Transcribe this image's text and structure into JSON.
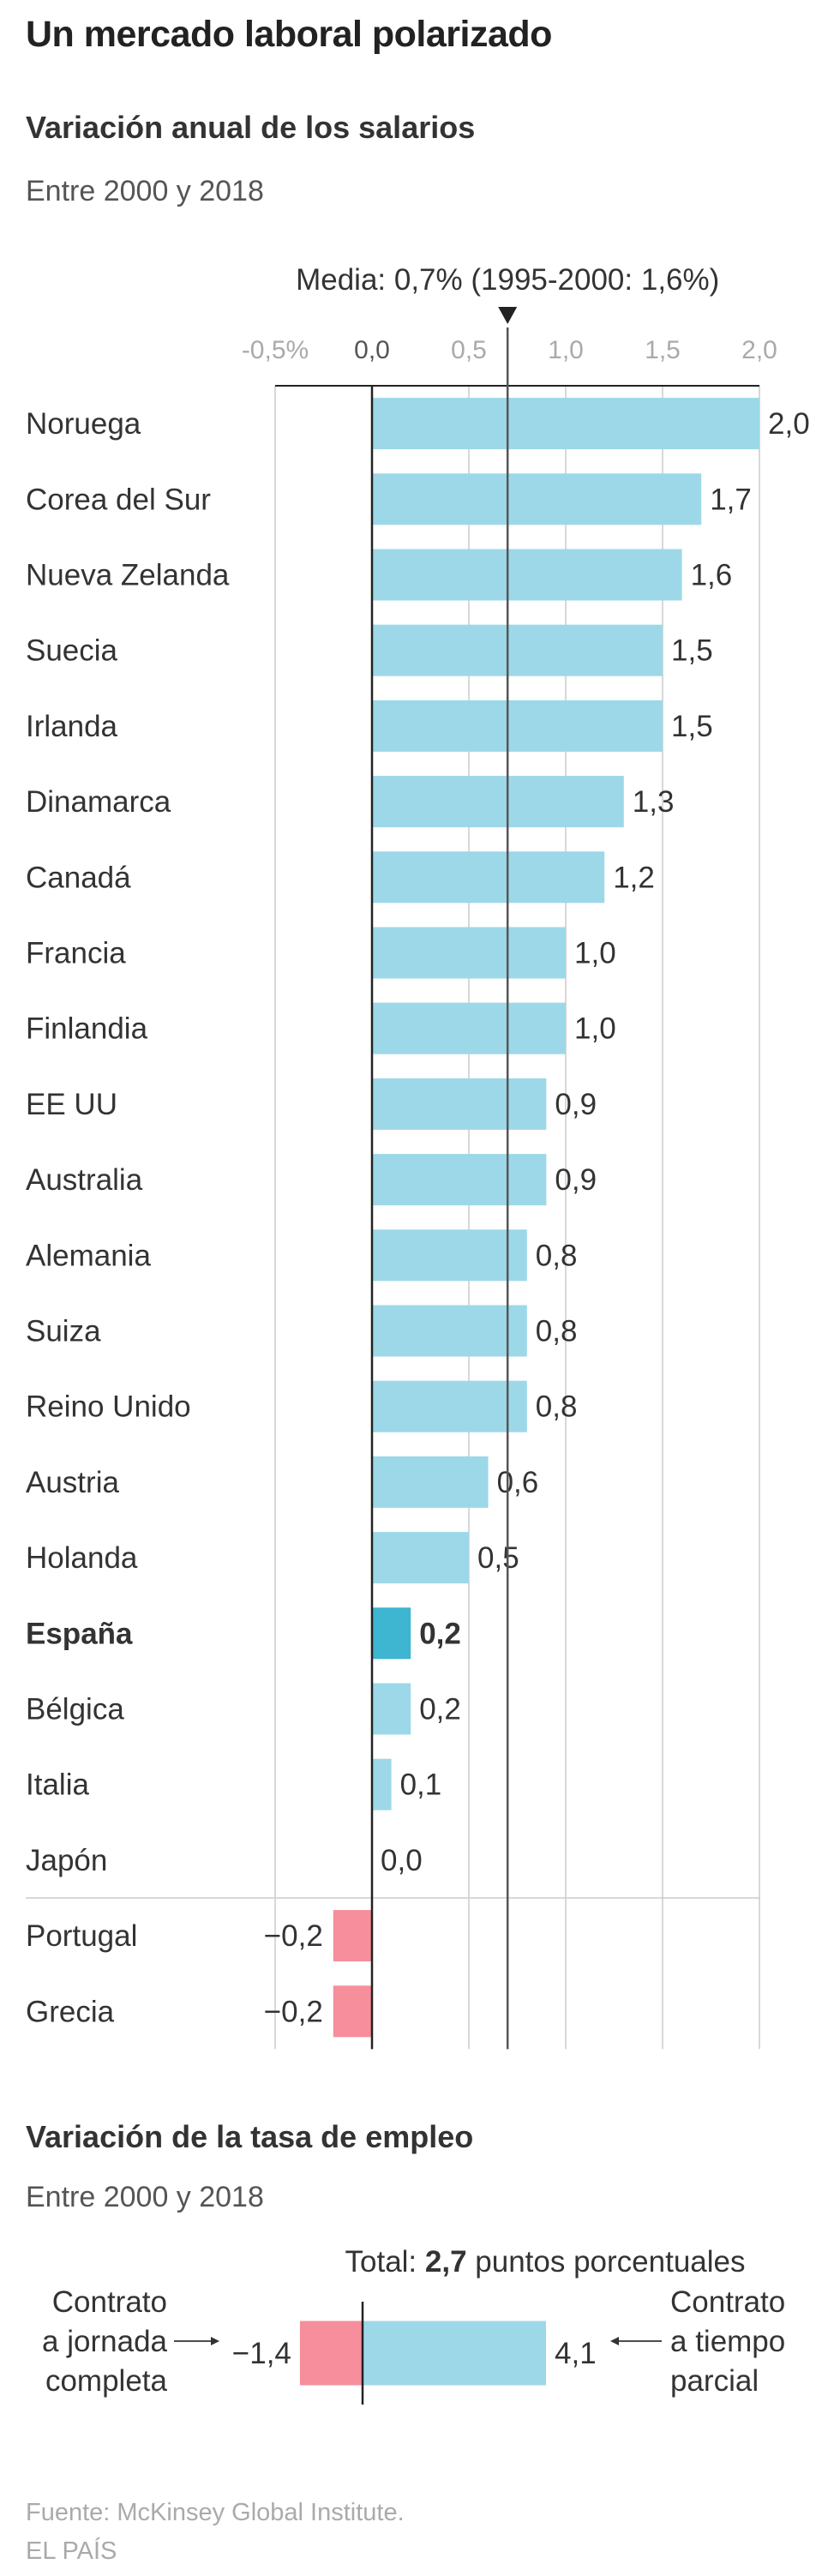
{
  "title": "Un mercado laboral polarizado",
  "source": "Fuente: McKinsey Global Institute.",
  "publisher": "EL PAÍS",
  "colors": {
    "positive": "#9dd8e8",
    "highlight": "#3eb5d1",
    "negative": "#f68e9b",
    "axis": "#222222",
    "grid": "#cccccc",
    "tick": "#aaaaaa"
  },
  "chart_data": [
    {
      "type": "bar",
      "orientation": "horizontal",
      "title": "Variación anual de los salarios",
      "subtitle": "Entre 2000 y 2018",
      "xlim": [
        -0.5,
        2.0
      ],
      "x_ticks": [
        {
          "value": -0.5,
          "label": "-0,5%"
        },
        {
          "value": 0.0,
          "label": "0,0"
        },
        {
          "value": 0.5,
          "label": "0,5"
        },
        {
          "value": 1.0,
          "label": "1,0"
        },
        {
          "value": 1.5,
          "label": "1,5"
        },
        {
          "value": 2.0,
          "label": "2,0"
        }
      ],
      "reference_line": {
        "value": 0.7,
        "label": "Media: 0,7% (1995-2000: 1,6%)"
      },
      "grid": true,
      "categories": [
        "Noruega",
        "Corea del Sur",
        "Nueva Zelanda",
        "Suecia",
        "Irlanda",
        "Dinamarca",
        "Canadá",
        "Francia",
        "Finlandia",
        "EE UU",
        "Australia",
        "Alemania",
        "Suiza",
        "Reino Unido",
        "Austria",
        "Holanda",
        "España",
        "Bélgica",
        "Italia",
        "Japón",
        "Portugal",
        "Grecia"
      ],
      "values": [
        2.0,
        1.7,
        1.6,
        1.5,
        1.5,
        1.3,
        1.2,
        1.0,
        1.0,
        0.9,
        0.9,
        0.8,
        0.8,
        0.8,
        0.6,
        0.5,
        0.2,
        0.2,
        0.1,
        0.0,
        -0.2,
        -0.2
      ],
      "value_labels": [
        "2,0",
        "1,7",
        "1,6",
        "1,5",
        "1,5",
        "1,3",
        "1,2",
        "1,0",
        "1,0",
        "0,9",
        "0,9",
        "0,8",
        "0,8",
        "0,8",
        "0,6",
        "0,5",
        "0,2",
        "0,2",
        "0,1",
        "0,0",
        "−0,2",
        "−0,2"
      ],
      "highlight": "España"
    },
    {
      "type": "bar",
      "orientation": "horizontal-diverging",
      "title": "Variación de la tasa de empleo",
      "subtitle": "Entre 2000 y 2018",
      "total_prefix": "Total: ",
      "total_value": "2,7",
      "total_suffix": " puntos porcentuales",
      "series": [
        {
          "name": "Contrato a jornada completa",
          "value": -1.4,
          "value_label": "−1,4",
          "label_lines": [
            "Contrato",
            "a jornada",
            "completa"
          ]
        },
        {
          "name": "Contrato a tiempo parcial",
          "value": 4.1,
          "value_label": "4,1",
          "label_lines": [
            "Contrato",
            "a tiempo",
            "parcial"
          ]
        }
      ]
    }
  ]
}
